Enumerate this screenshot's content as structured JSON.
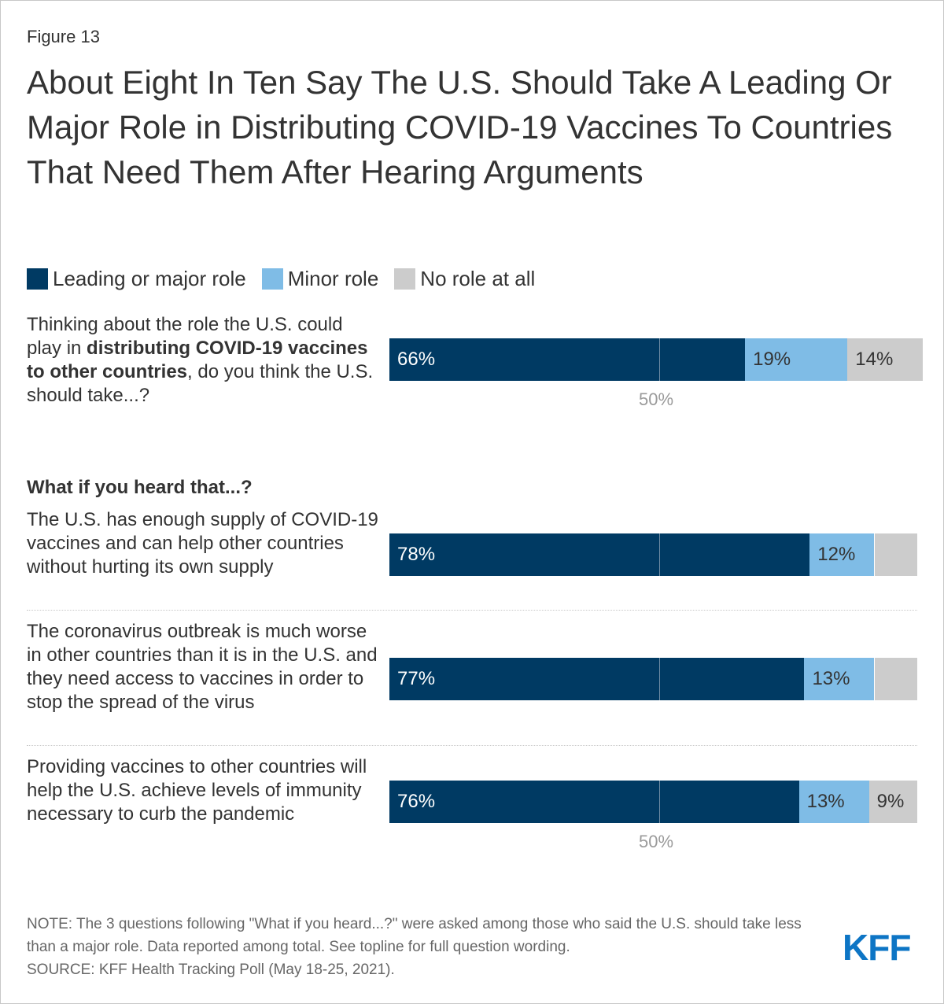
{
  "figure_label": "Figure 13",
  "title": "About Eight In Ten Say The U.S. Should Take A Leading Or Major Role in Distributing COVID-19 Vaccines To Countries That Need Them After Hearing Arguments",
  "colors": {
    "leading": "#003a63",
    "minor": "#7fbce6",
    "none": "#cccccc"
  },
  "legend": [
    {
      "label": "Leading or major role",
      "color": "#003a63"
    },
    {
      "label": "Minor role",
      "color": "#7fbce6"
    },
    {
      "label": "No role at all",
      "color": "#cccccc"
    }
  ],
  "question1": {
    "pre": "Thinking about the role the U.S. could play in ",
    "bold": "distributing COVID-19 vaccines to other countries",
    "post": ", do you think the U.S. should take...?"
  },
  "subheading": "What if you heard that...?",
  "statements": [
    "The U.S. has enough supply of COVID-19 vaccines and can help other countries without hurting its own supply",
    "The coronavirus outbreak is much worse in other countries than it is in the U.S. and they need access to vaccines in order to stop the spread of the virus",
    "Providing vaccines to other countries will help the U.S. achieve levels of immunity necessary to curb the pandemic"
  ],
  "axis_label": "50%",
  "chart_data": {
    "type": "bar",
    "orientation": "horizontal",
    "stacked": true,
    "categories": [
      "Thinking about the role the U.S. could play in distributing COVID-19 vaccines to other countries, do you think the U.S. should take...?",
      "The U.S. has enough supply of COVID-19 vaccines and can help other countries without hurting its own supply",
      "The coronavirus outbreak is much worse in other countries than it is in the U.S. and they need access to vaccines in order to stop the spread of the virus",
      "Providing vaccines to other countries will help the U.S. achieve levels of immunity necessary to curb the pandemic"
    ],
    "series": [
      {
        "name": "Leading or major role",
        "values": [
          66,
          78,
          77,
          76
        ],
        "labels": [
          "66%",
          "78%",
          "77%",
          "76%"
        ]
      },
      {
        "name": "Minor role",
        "values": [
          19,
          12,
          13,
          13
        ],
        "labels": [
          "19%",
          "12%",
          "13%",
          "13%"
        ]
      },
      {
        "name": "No role at all",
        "values": [
          14,
          8,
          8,
          9
        ],
        "labels": [
          "14%",
          "",
          "",
          "9%"
        ]
      }
    ],
    "xlim": [
      0,
      100
    ],
    "reference_line": 50,
    "reference_label": "50%"
  },
  "note": "NOTE: The 3 questions following \"What if you heard...?\" were asked among those who said the U.S. should take less than a major role. Data reported among total. See topline for full question wording.",
  "source": "SOURCE: KFF Health Tracking Poll (May 18-25, 2021).",
  "logo_text": "KFF"
}
